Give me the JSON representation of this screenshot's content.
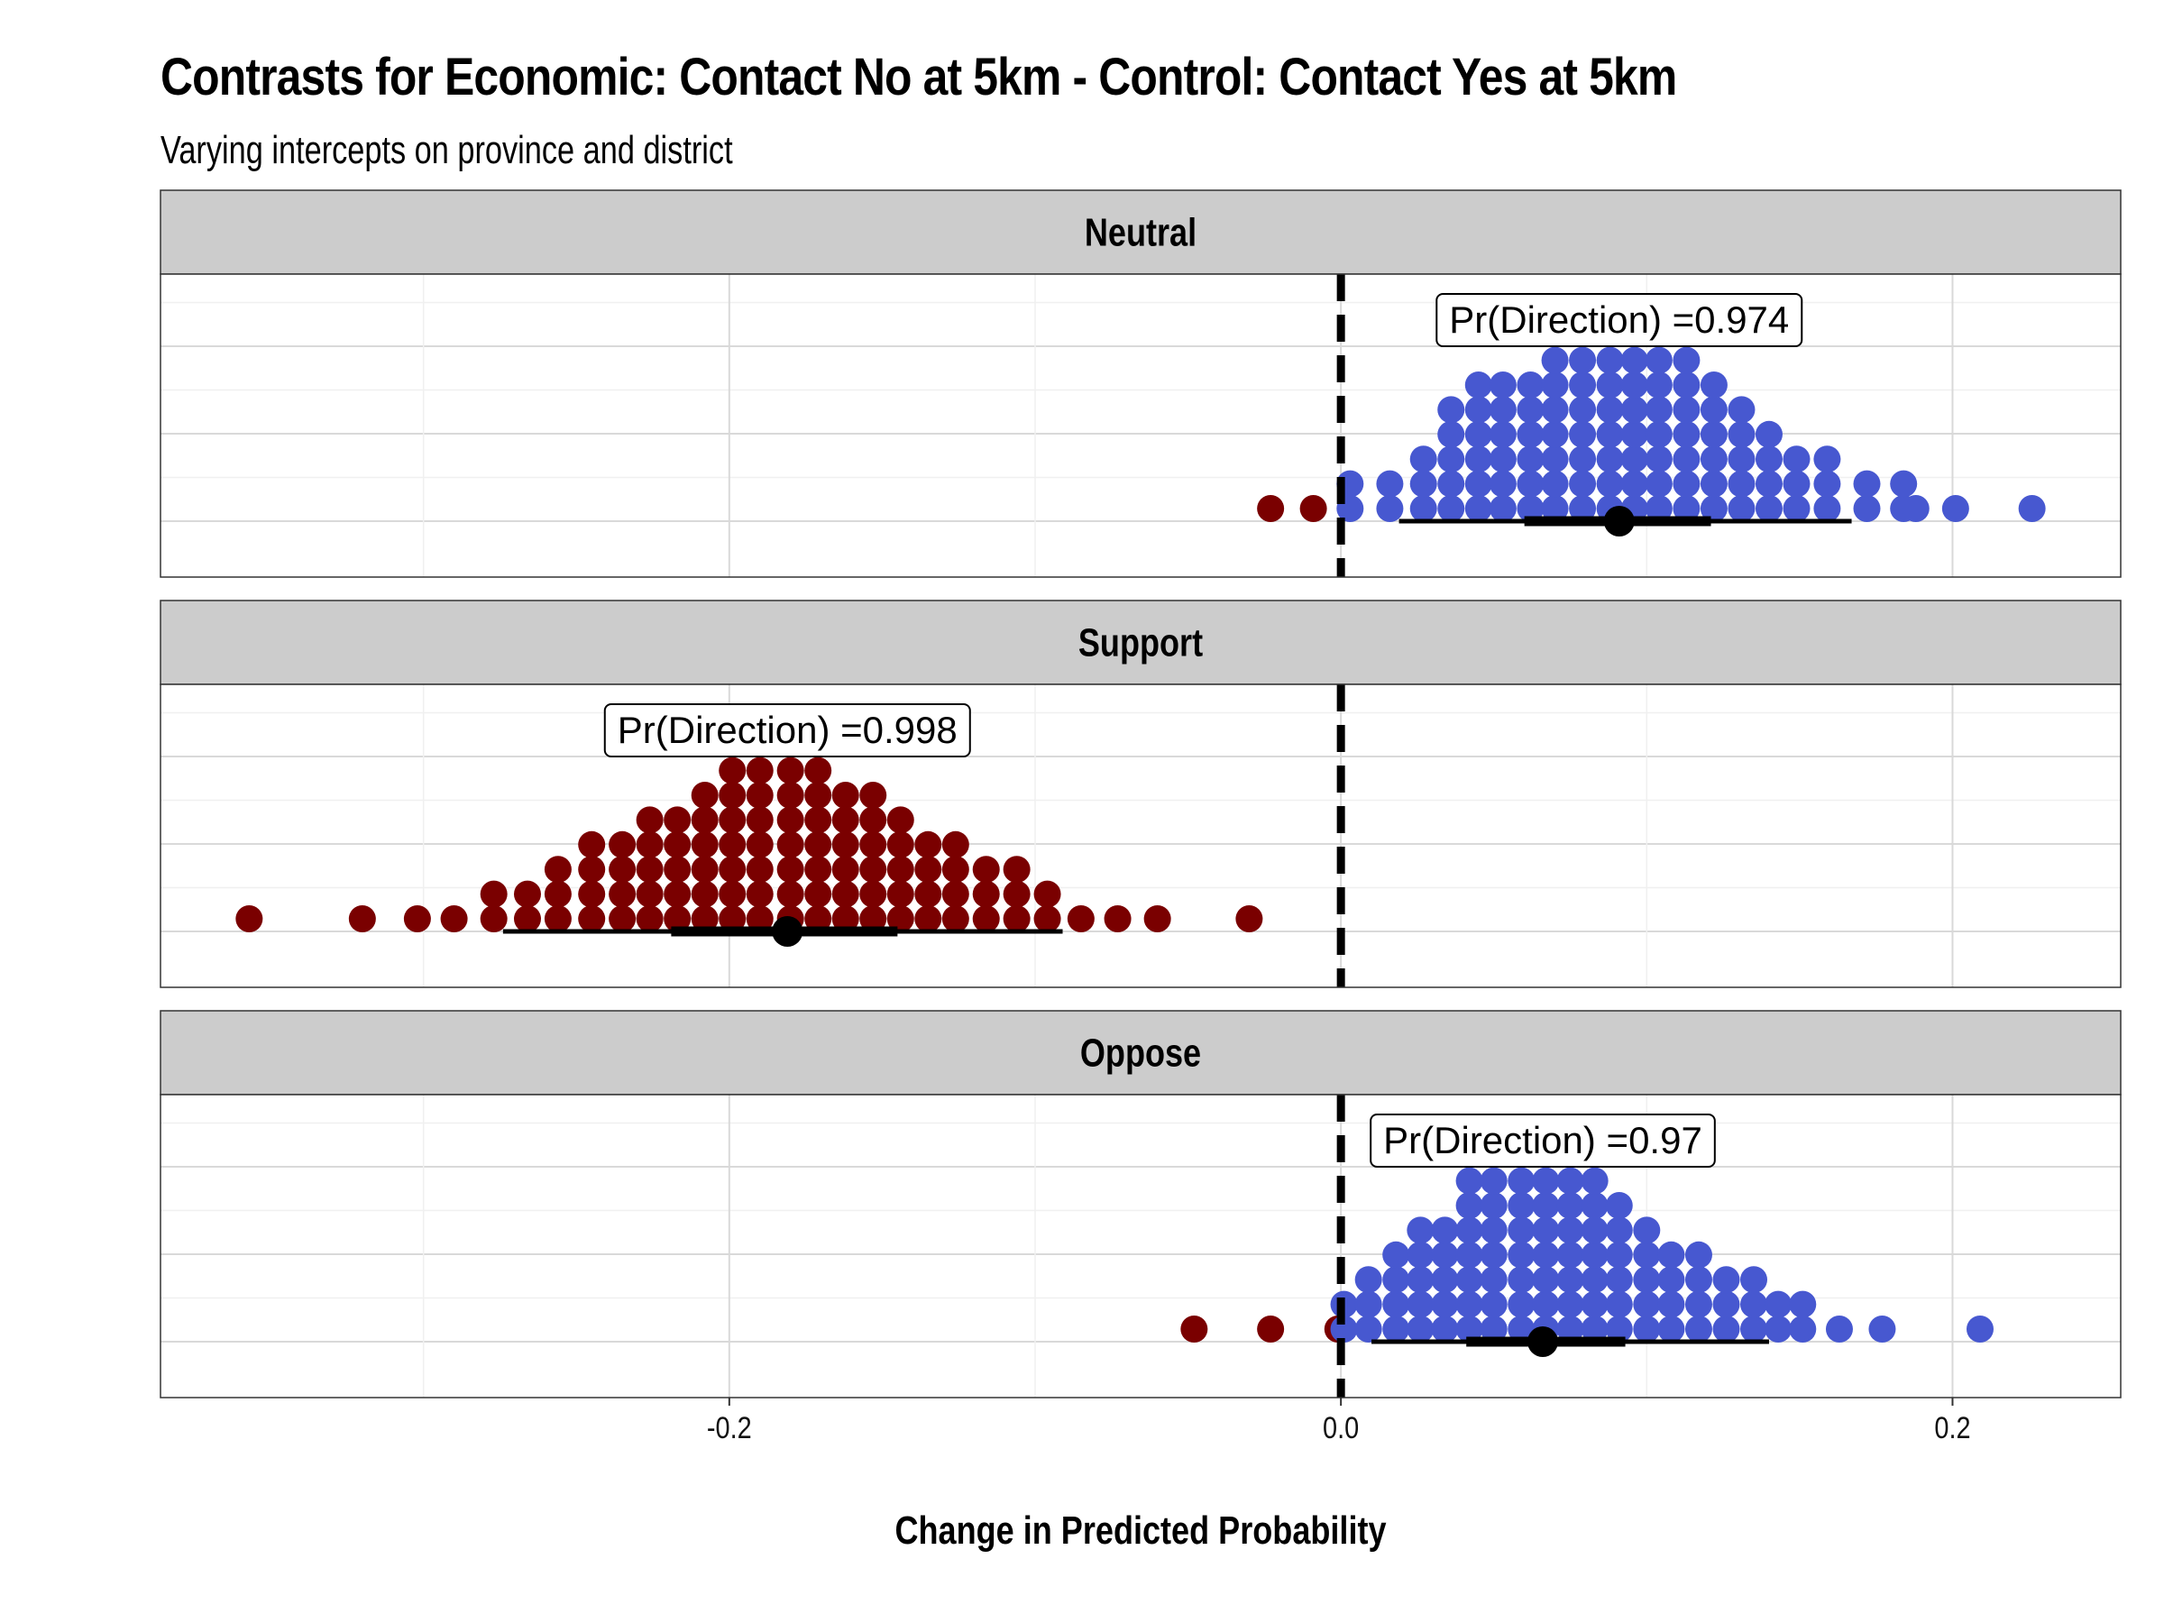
{
  "chart_data": {
    "type": "scatter",
    "title": "Contrasts for Economic: Contact No at 5km - Control: Contact Yes at 5km",
    "subtitle": "Varying intercepts on province and district",
    "xlabel": "Change in Predicted Probability",
    "ylabel": "",
    "xlim": [
      -0.386,
      0.255
    ],
    "x_ticks": [
      -0.2,
      0.0,
      0.2
    ],
    "x_tick_labels": [
      "-0.2",
      "0.0",
      "0.2"
    ],
    "reference_line_x": 0.0,
    "grid": true,
    "legend": "none",
    "colors": {
      "positive": "#4758D0",
      "negative": "#7A0000",
      "strip_bg": "#CCCCCC",
      "point_estimate": "#000000"
    },
    "panels": [
      {
        "name": "Neutral",
        "label": "Pr(Direction) =0.974",
        "label_x": 0.091,
        "point_estimate": 0.091,
        "interval_66": [
          0.06,
          0.121
        ],
        "interval_95": [
          0.019,
          0.167
        ],
        "dots": [
          [
            -0.023,
            1
          ],
          [
            -0.009,
            1
          ],
          [
            0.003,
            2
          ],
          [
            0.016,
            2
          ],
          [
            0.027,
            3
          ],
          [
            0.036,
            5
          ],
          [
            0.045,
            6
          ],
          [
            0.053,
            6
          ],
          [
            0.062,
            6
          ],
          [
            0.07,
            7
          ],
          [
            0.079,
            7
          ],
          [
            0.088,
            7
          ],
          [
            0.096,
            7
          ],
          [
            0.104,
            7
          ],
          [
            0.113,
            7
          ],
          [
            0.122,
            6
          ],
          [
            0.131,
            5
          ],
          [
            0.14,
            4
          ],
          [
            0.149,
            3
          ],
          [
            0.159,
            3
          ],
          [
            0.172,
            2
          ],
          [
            0.184,
            2
          ],
          [
            0.188,
            1
          ],
          [
            0.201,
            1
          ],
          [
            0.226,
            1
          ]
        ]
      },
      {
        "name": "Support",
        "label": "Pr(Direction) =0.998",
        "label_x": -0.181,
        "point_estimate": -0.181,
        "interval_66": [
          -0.219,
          -0.145
        ],
        "interval_95": [
          -0.274,
          -0.091
        ],
        "dots": [
          [
            -0.357,
            1
          ],
          [
            -0.32,
            1
          ],
          [
            -0.302,
            1
          ],
          [
            -0.29,
            1
          ],
          [
            -0.277,
            2
          ],
          [
            -0.266,
            2
          ],
          [
            -0.256,
            3
          ],
          [
            -0.245,
            4
          ],
          [
            -0.235,
            4
          ],
          [
            -0.226,
            5
          ],
          [
            -0.217,
            5
          ],
          [
            -0.208,
            6
          ],
          [
            -0.199,
            7
          ],
          [
            -0.19,
            7
          ],
          [
            -0.18,
            7
          ],
          [
            -0.171,
            7
          ],
          [
            -0.162,
            6
          ],
          [
            -0.153,
            6
          ],
          [
            -0.144,
            5
          ],
          [
            -0.135,
            4
          ],
          [
            -0.126,
            4
          ],
          [
            -0.116,
            3
          ],
          [
            -0.106,
            3
          ],
          [
            -0.096,
            2
          ],
          [
            -0.085,
            1
          ],
          [
            -0.073,
            1
          ],
          [
            -0.06,
            1
          ],
          [
            -0.03,
            1
          ]
        ]
      },
      {
        "name": "Oppose",
        "label": "Pr(Direction) =0.97",
        "label_x": 0.066,
        "point_estimate": 0.066,
        "interval_66": [
          0.041,
          0.093
        ],
        "interval_95": [
          0.01,
          0.14
        ],
        "dots": [
          [
            -0.048,
            1
          ],
          [
            -0.023,
            1
          ],
          [
            -0.001,
            1
          ],
          [
            0.001,
            2
          ],
          [
            0.009,
            3
          ],
          [
            0.018,
            4
          ],
          [
            0.026,
            5
          ],
          [
            0.034,
            5
          ],
          [
            0.042,
            7
          ],
          [
            0.05,
            7
          ],
          [
            0.059,
            7
          ],
          [
            0.067,
            7
          ],
          [
            0.075,
            7
          ],
          [
            0.083,
            7
          ],
          [
            0.091,
            6
          ],
          [
            0.1,
            5
          ],
          [
            0.108,
            4
          ],
          [
            0.117,
            4
          ],
          [
            0.126,
            3
          ],
          [
            0.135,
            3
          ],
          [
            0.143,
            2
          ],
          [
            0.151,
            2
          ],
          [
            0.163,
            1
          ],
          [
            0.177,
            1
          ],
          [
            0.209,
            1
          ]
        ]
      }
    ]
  }
}
